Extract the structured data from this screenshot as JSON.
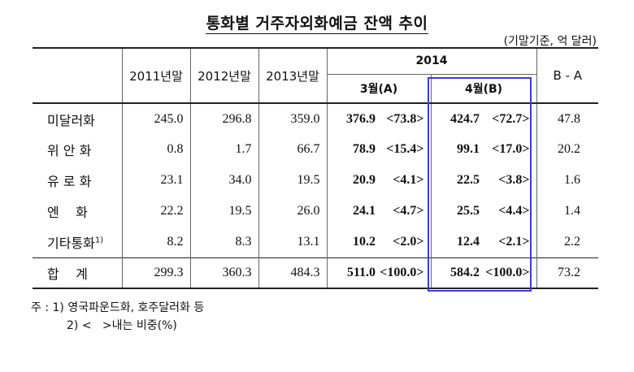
{
  "title": "통화별 거주자외화예금 잔액 추이",
  "unit": "(기말기준, 억 달러)",
  "headers": {
    "y2011": "2011년말",
    "y2012": "2012년말",
    "y2013": "2013년말",
    "y2014": "2014",
    "mar": "3월(A)",
    "apr": "4월(B)",
    "diff": "B - A"
  },
  "rows": [
    {
      "label": "미달러화",
      "sup": "",
      "v2011": "245.0",
      "v2012": "296.8",
      "v2013": "359.0",
      "mar": "376.9",
      "mar_pct": "<73.8>",
      "apr": "424.7",
      "apr_pct": "<72.7>",
      "diff": "47.8"
    },
    {
      "label": "위 안 화",
      "sup": "",
      "v2011": "0.8",
      "v2012": "1.7",
      "v2013": "66.7",
      "mar": "78.9",
      "mar_pct": "<15.4>",
      "apr": "99.1",
      "apr_pct": "<17.0>",
      "diff": "20.2"
    },
    {
      "label": "유 로 화",
      "sup": "",
      "v2011": "23.1",
      "v2012": "34.0",
      "v2013": "19.5",
      "mar": "20.9",
      "mar_pct": "<4.1>",
      "apr": "22.5",
      "apr_pct": "<3.8>",
      "diff": "1.6"
    },
    {
      "label": "엔    화",
      "sup": "",
      "v2011": "22.2",
      "v2012": "19.5",
      "v2013": "26.0",
      "mar": "24.1",
      "mar_pct": "<4.7>",
      "apr": "25.5",
      "apr_pct": "<4.4>",
      "diff": "1.4"
    },
    {
      "label": "기타통화",
      "sup": "1)",
      "v2011": "8.2",
      "v2012": "8.3",
      "v2013": "13.1",
      "mar": "10.2",
      "mar_pct": "<2.0>",
      "apr": "12.4",
      "apr_pct": "<2.1>",
      "diff": "2.2"
    }
  ],
  "total": {
    "label": "합    계",
    "v2011": "299.3",
    "v2012": "360.3",
    "v2013": "484.3",
    "mar": "511.0",
    "mar_pct": "<100.0>",
    "apr": "584.2",
    "apr_pct": "<100.0>",
    "diff": "73.2"
  },
  "notes": {
    "line1": "주 : 1) 영국파운드화, 호주달러화 등",
    "line2": "2) <   >내는 비중(%)"
  },
  "colors": {
    "highlight_box": "#3a3fcf"
  }
}
